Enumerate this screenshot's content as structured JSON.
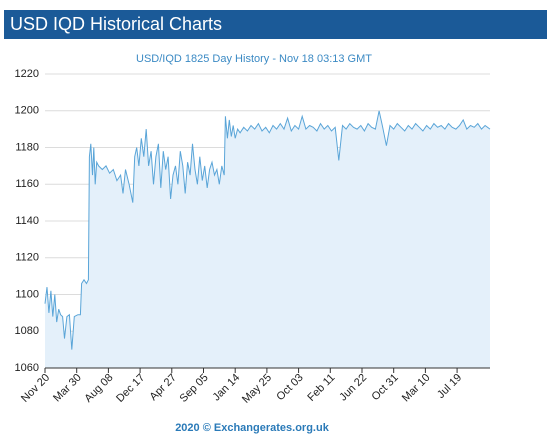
{
  "chart_data": {
    "type": "area",
    "title": "USD IQD Historical Charts",
    "subtitle": "USD/IQD 1825 Day History - Nov 18 03:13 GMT",
    "footer": "2020 © Exchangerates.org.uk",
    "color": "#5aa5d8",
    "fill": "#e4f0fa",
    "grid": true,
    "xlim": [
      0,
      1825
    ],
    "xticks": [
      {
        "value": 0,
        "label": "Nov 20"
      },
      {
        "value": 130,
        "label": "Mar 30"
      },
      {
        "value": 260,
        "label": "Aug 08"
      },
      {
        "value": 390,
        "label": "Dec 17"
      },
      {
        "value": 520,
        "label": "Apr 27"
      },
      {
        "value": 650,
        "label": "Sep 05"
      },
      {
        "value": 780,
        "label": "Jan 14"
      },
      {
        "value": 910,
        "label": "May 25"
      },
      {
        "value": 1040,
        "label": "Oct 03"
      },
      {
        "value": 1170,
        "label": "Feb 11"
      },
      {
        "value": 1300,
        "label": "Jun 22"
      },
      {
        "value": 1430,
        "label": "Oct 31"
      },
      {
        "value": 1560,
        "label": "Mar 10"
      },
      {
        "value": 1690,
        "label": "Jul 19"
      }
    ],
    "ylim": [
      1060,
      1220
    ],
    "yticks": [
      1060,
      1080,
      1100,
      1120,
      1140,
      1160,
      1180,
      1200,
      1220
    ],
    "x": [
      0,
      8,
      16,
      24,
      32,
      40,
      48,
      56,
      64,
      72,
      80,
      90,
      100,
      110,
      120,
      135,
      145,
      150,
      160,
      170,
      178,
      182,
      188,
      195,
      200,
      206,
      212,
      220,
      235,
      250,
      265,
      280,
      295,
      310,
      320,
      330,
      345,
      360,
      368,
      376,
      385,
      395,
      405,
      415,
      425,
      435,
      445,
      455,
      465,
      475,
      485,
      495,
      505,
      515,
      525,
      535,
      545,
      555,
      565,
      575,
      585,
      595,
      605,
      615,
      625,
      635,
      645,
      655,
      665,
      675,
      685,
      695,
      705,
      715,
      725,
      735,
      740,
      748,
      756,
      764,
      772,
      780,
      790,
      800,
      815,
      830,
      845,
      860,
      875,
      890,
      905,
      920,
      935,
      950,
      965,
      980,
      995,
      1010,
      1025,
      1040,
      1055,
      1070,
      1085,
      1100,
      1115,
      1130,
      1145,
      1160,
      1175,
      1190,
      1205,
      1220,
      1235,
      1250,
      1265,
      1280,
      1295,
      1310,
      1325,
      1340,
      1355,
      1370,
      1385,
      1400,
      1415,
      1430,
      1445,
      1460,
      1475,
      1490,
      1505,
      1520,
      1535,
      1550,
      1565,
      1580,
      1595,
      1610,
      1625,
      1640,
      1655,
      1670,
      1685,
      1700,
      1715,
      1730,
      1745,
      1760,
      1775,
      1790,
      1805,
      1825
    ],
    "values": [
      1095,
      1104,
      1090,
      1102,
      1088,
      1100,
      1085,
      1092,
      1089,
      1088,
      1076,
      1088,
      1089,
      1070,
      1088,
      1089,
      1089,
      1106,
      1108,
      1106,
      1108,
      1175,
      1182,
      1165,
      1180,
      1160,
      1172,
      1170,
      1168,
      1170,
      1166,
      1168,
      1162,
      1165,
      1155,
      1168,
      1160,
      1150,
      1175,
      1180,
      1170,
      1185,
      1175,
      1190,
      1170,
      1178,
      1160,
      1175,
      1182,
      1158,
      1178,
      1168,
      1175,
      1152,
      1165,
      1170,
      1160,
      1178,
      1170,
      1155,
      1172,
      1165,
      1182,
      1168,
      1160,
      1175,
      1162,
      1170,
      1158,
      1168,
      1172,
      1165,
      1168,
      1160,
      1170,
      1165,
      1197,
      1185,
      1195,
      1186,
      1192,
      1185,
      1190,
      1188,
      1191,
      1189,
      1192,
      1190,
      1193,
      1189,
      1191,
      1188,
      1192,
      1190,
      1193,
      1190,
      1196,
      1189,
      1192,
      1190,
      1197,
      1190,
      1192,
      1191,
      1189,
      1193,
      1190,
      1192,
      1189,
      1191,
      1173,
      1192,
      1190,
      1193,
      1191,
      1190,
      1192,
      1189,
      1193,
      1191,
      1190,
      1200,
      1191,
      1181,
      1192,
      1190,
      1193,
      1191,
      1189,
      1192,
      1190,
      1193,
      1191,
      1189,
      1192,
      1190,
      1193,
      1191,
      1192,
      1190,
      1193,
      1191,
      1190,
      1192,
      1195,
      1190,
      1192,
      1191,
      1193,
      1190,
      1192,
      1190
    ]
  }
}
